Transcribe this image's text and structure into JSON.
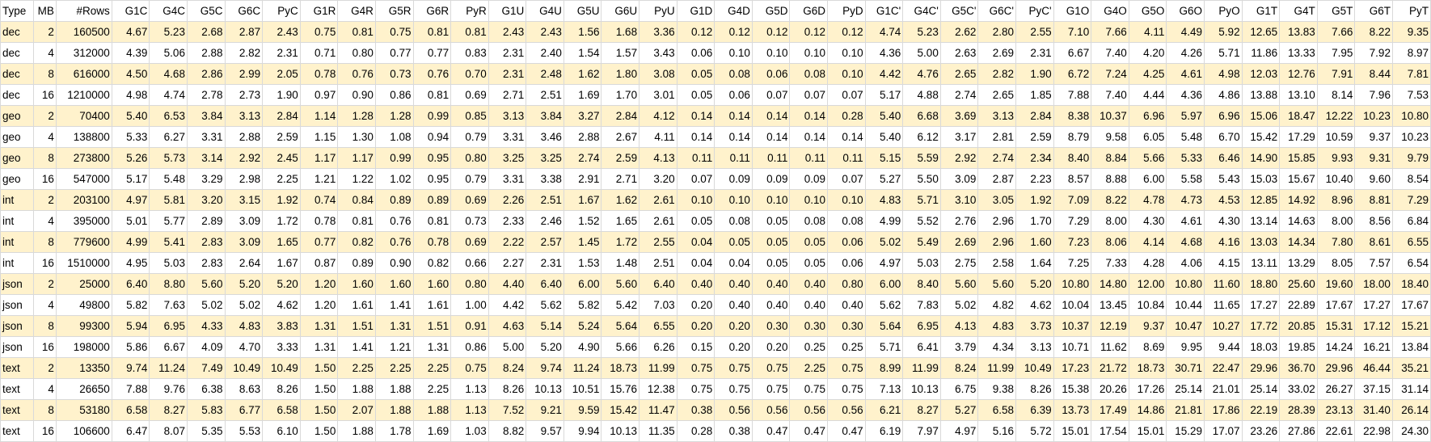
{
  "colors": {
    "band_fill": "#fff2cc",
    "plain_fill": "#ffffff",
    "gridline": "#d9d9d9"
  },
  "table": {
    "headers": [
      "Type",
      "MB",
      "#Rows",
      "G1C",
      "G4C",
      "G5C",
      "G6C",
      "PyC",
      "G1R",
      "G4R",
      "G5R",
      "G6R",
      "PyR",
      "G1U",
      "G4U",
      "G5U",
      "G6U",
      "PyU",
      "G1D",
      "G4D",
      "G5D",
      "G6D",
      "PyD",
      "G1C'",
      "G4C'",
      "G5C'",
      "G6C'",
      "PyC'",
      "G1O",
      "G4O",
      "G5O",
      "G6O",
      "PyO",
      "G1T",
      "G4T",
      "G5T",
      "G6T",
      "PyT"
    ],
    "rows": [
      [
        "dec",
        "2",
        "160500",
        "4.67",
        "5.23",
        "2.68",
        "2.87",
        "2.43",
        "0.75",
        "0.81",
        "0.75",
        "0.81",
        "0.81",
        "2.43",
        "2.43",
        "1.56",
        "1.68",
        "3.36",
        "0.12",
        "0.12",
        "0.12",
        "0.12",
        "0.12",
        "4.74",
        "5.23",
        "2.62",
        "2.80",
        "2.55",
        "7.10",
        "7.66",
        "4.11",
        "4.49",
        "5.92",
        "12.65",
        "13.83",
        "7.66",
        "8.22",
        "9.35"
      ],
      [
        "dec",
        "4",
        "312000",
        "4.39",
        "5.06",
        "2.88",
        "2.82",
        "2.31",
        "0.71",
        "0.80",
        "0.77",
        "0.77",
        "0.83",
        "2.31",
        "2.40",
        "1.54",
        "1.57",
        "3.43",
        "0.06",
        "0.10",
        "0.10",
        "0.10",
        "0.10",
        "4.36",
        "5.00",
        "2.63",
        "2.69",
        "2.31",
        "6.67",
        "7.40",
        "4.20",
        "4.26",
        "5.71",
        "11.86",
        "13.33",
        "7.95",
        "7.92",
        "8.97"
      ],
      [
        "dec",
        "8",
        "616000",
        "4.50",
        "4.68",
        "2.86",
        "2.99",
        "2.05",
        "0.78",
        "0.76",
        "0.73",
        "0.76",
        "0.70",
        "2.31",
        "2.48",
        "1.62",
        "1.80",
        "3.08",
        "0.05",
        "0.08",
        "0.06",
        "0.08",
        "0.10",
        "4.42",
        "4.76",
        "2.65",
        "2.82",
        "1.90",
        "6.72",
        "7.24",
        "4.25",
        "4.61",
        "4.98",
        "12.03",
        "12.76",
        "7.91",
        "8.44",
        "7.81"
      ],
      [
        "dec",
        "16",
        "1210000",
        "4.98",
        "4.74",
        "2.78",
        "2.73",
        "1.90",
        "0.97",
        "0.90",
        "0.86",
        "0.81",
        "0.69",
        "2.71",
        "2.51",
        "1.69",
        "1.70",
        "3.01",
        "0.05",
        "0.06",
        "0.07",
        "0.07",
        "0.07",
        "5.17",
        "4.88",
        "2.74",
        "2.65",
        "1.85",
        "7.88",
        "7.40",
        "4.44",
        "4.36",
        "4.86",
        "13.88",
        "13.10",
        "8.14",
        "7.96",
        "7.53"
      ],
      [
        "geo",
        "2",
        "70400",
        "5.40",
        "6.53",
        "3.84",
        "3.13",
        "2.84",
        "1.14",
        "1.28",
        "1.28",
        "0.99",
        "0.85",
        "3.13",
        "3.84",
        "3.27",
        "2.84",
        "4.12",
        "0.14",
        "0.14",
        "0.14",
        "0.14",
        "0.28",
        "5.40",
        "6.68",
        "3.69",
        "3.13",
        "2.84",
        "8.38",
        "10.37",
        "6.96",
        "5.97",
        "6.96",
        "15.06",
        "18.47",
        "12.22",
        "10.23",
        "10.80"
      ],
      [
        "geo",
        "4",
        "138800",
        "5.33",
        "6.27",
        "3.31",
        "2.88",
        "2.59",
        "1.15",
        "1.30",
        "1.08",
        "0.94",
        "0.79",
        "3.31",
        "3.46",
        "2.88",
        "2.67",
        "4.11",
        "0.14",
        "0.14",
        "0.14",
        "0.14",
        "0.14",
        "5.40",
        "6.12",
        "3.17",
        "2.81",
        "2.59",
        "8.79",
        "9.58",
        "6.05",
        "5.48",
        "6.70",
        "15.42",
        "17.29",
        "10.59",
        "9.37",
        "10.23"
      ],
      [
        "geo",
        "8",
        "273800",
        "5.26",
        "5.73",
        "3.14",
        "2.92",
        "2.45",
        "1.17",
        "1.17",
        "0.99",
        "0.95",
        "0.80",
        "3.25",
        "3.25",
        "2.74",
        "2.59",
        "4.13",
        "0.11",
        "0.11",
        "0.11",
        "0.11",
        "0.11",
        "5.15",
        "5.59",
        "2.92",
        "2.74",
        "2.34",
        "8.40",
        "8.84",
        "5.66",
        "5.33",
        "6.46",
        "14.90",
        "15.85",
        "9.93",
        "9.31",
        "9.79"
      ],
      [
        "geo",
        "16",
        "547000",
        "5.17",
        "5.48",
        "3.29",
        "2.98",
        "2.25",
        "1.21",
        "1.22",
        "1.02",
        "0.95",
        "0.79",
        "3.31",
        "3.38",
        "2.91",
        "2.71",
        "3.20",
        "0.07",
        "0.09",
        "0.09",
        "0.09",
        "0.07",
        "5.27",
        "5.50",
        "3.09",
        "2.87",
        "2.23",
        "8.57",
        "8.88",
        "6.00",
        "5.58",
        "5.43",
        "15.03",
        "15.67",
        "10.40",
        "9.60",
        "8.54"
      ],
      [
        "int",
        "2",
        "203100",
        "4.97",
        "5.81",
        "3.20",
        "3.15",
        "1.92",
        "0.74",
        "0.84",
        "0.89",
        "0.89",
        "0.69",
        "2.26",
        "2.51",
        "1.67",
        "1.62",
        "2.61",
        "0.10",
        "0.10",
        "0.10",
        "0.10",
        "0.10",
        "4.83",
        "5.71",
        "3.10",
        "3.05",
        "1.92",
        "7.09",
        "8.22",
        "4.78",
        "4.73",
        "4.53",
        "12.85",
        "14.92",
        "8.96",
        "8.81",
        "7.29"
      ],
      [
        "int",
        "4",
        "395000",
        "5.01",
        "5.77",
        "2.89",
        "3.09",
        "1.72",
        "0.78",
        "0.81",
        "0.76",
        "0.81",
        "0.73",
        "2.33",
        "2.46",
        "1.52",
        "1.65",
        "2.61",
        "0.05",
        "0.08",
        "0.05",
        "0.08",
        "0.08",
        "4.99",
        "5.52",
        "2.76",
        "2.96",
        "1.70",
        "7.29",
        "8.00",
        "4.30",
        "4.61",
        "4.30",
        "13.14",
        "14.63",
        "8.00",
        "8.56",
        "6.84"
      ],
      [
        "int",
        "8",
        "779600",
        "4.99",
        "5.41",
        "2.83",
        "3.09",
        "1.65",
        "0.77",
        "0.82",
        "0.76",
        "0.78",
        "0.69",
        "2.22",
        "2.57",
        "1.45",
        "1.72",
        "2.55",
        "0.04",
        "0.05",
        "0.05",
        "0.05",
        "0.06",
        "5.02",
        "5.49",
        "2.69",
        "2.96",
        "1.60",
        "7.23",
        "8.06",
        "4.14",
        "4.68",
        "4.16",
        "13.03",
        "14.34",
        "7.80",
        "8.61",
        "6.55"
      ],
      [
        "int",
        "16",
        "1510000",
        "4.95",
        "5.03",
        "2.83",
        "2.64",
        "1.67",
        "0.87",
        "0.89",
        "0.90",
        "0.82",
        "0.66",
        "2.27",
        "2.31",
        "1.53",
        "1.48",
        "2.51",
        "0.04",
        "0.04",
        "0.05",
        "0.05",
        "0.06",
        "4.97",
        "5.03",
        "2.75",
        "2.58",
        "1.64",
        "7.25",
        "7.33",
        "4.28",
        "4.06",
        "4.15",
        "13.11",
        "13.29",
        "8.05",
        "7.57",
        "6.54"
      ],
      [
        "json",
        "2",
        "25000",
        "6.40",
        "8.80",
        "5.60",
        "5.20",
        "5.20",
        "1.20",
        "1.60",
        "1.60",
        "1.60",
        "0.80",
        "4.40",
        "6.40",
        "6.00",
        "5.60",
        "6.40",
        "0.40",
        "0.40",
        "0.40",
        "0.40",
        "0.80",
        "6.00",
        "8.40",
        "5.60",
        "5.60",
        "5.20",
        "10.80",
        "14.80",
        "12.00",
        "10.80",
        "11.60",
        "18.80",
        "25.60",
        "19.60",
        "18.00",
        "18.40"
      ],
      [
        "json",
        "4",
        "49800",
        "5.82",
        "7.63",
        "5.02",
        "5.02",
        "4.62",
        "1.20",
        "1.61",
        "1.41",
        "1.61",
        "1.00",
        "4.42",
        "5.62",
        "5.82",
        "5.42",
        "7.03",
        "0.20",
        "0.40",
        "0.40",
        "0.40",
        "0.40",
        "5.62",
        "7.83",
        "5.02",
        "4.82",
        "4.62",
        "10.04",
        "13.45",
        "10.84",
        "10.44",
        "11.65",
        "17.27",
        "22.89",
        "17.67",
        "17.27",
        "17.67"
      ],
      [
        "json",
        "8",
        "99300",
        "5.94",
        "6.95",
        "4.33",
        "4.83",
        "3.83",
        "1.31",
        "1.51",
        "1.31",
        "1.51",
        "0.91",
        "4.63",
        "5.14",
        "5.24",
        "5.64",
        "6.55",
        "0.20",
        "0.20",
        "0.30",
        "0.30",
        "0.30",
        "5.64",
        "6.95",
        "4.13",
        "4.83",
        "3.73",
        "10.37",
        "12.19",
        "9.37",
        "10.47",
        "10.27",
        "17.72",
        "20.85",
        "15.31",
        "17.12",
        "15.21"
      ],
      [
        "json",
        "16",
        "198000",
        "5.86",
        "6.67",
        "4.09",
        "4.70",
        "3.33",
        "1.31",
        "1.41",
        "1.21",
        "1.31",
        "0.86",
        "5.00",
        "5.20",
        "4.90",
        "5.66",
        "6.26",
        "0.15",
        "0.20",
        "0.20",
        "0.25",
        "0.25",
        "5.71",
        "6.41",
        "3.79",
        "4.34",
        "3.13",
        "10.71",
        "11.62",
        "8.69",
        "9.95",
        "9.44",
        "18.03",
        "19.85",
        "14.24",
        "16.21",
        "13.84"
      ],
      [
        "text",
        "2",
        "13350",
        "9.74",
        "11.24",
        "7.49",
        "10.49",
        "10.49",
        "1.50",
        "2.25",
        "2.25",
        "2.25",
        "0.75",
        "8.24",
        "9.74",
        "11.24",
        "18.73",
        "11.99",
        "0.75",
        "0.75",
        "0.75",
        "2.25",
        "0.75",
        "8.99",
        "11.99",
        "8.24",
        "11.99",
        "10.49",
        "17.23",
        "21.72",
        "18.73",
        "30.71",
        "22.47",
        "29.96",
        "36.70",
        "29.96",
        "46.44",
        "35.21"
      ],
      [
        "text",
        "4",
        "26650",
        "7.88",
        "9.76",
        "6.38",
        "8.63",
        "8.26",
        "1.50",
        "1.88",
        "1.88",
        "2.25",
        "1.13",
        "8.26",
        "10.13",
        "10.51",
        "15.76",
        "12.38",
        "0.75",
        "0.75",
        "0.75",
        "0.75",
        "0.75",
        "7.13",
        "10.13",
        "6.75",
        "9.38",
        "8.26",
        "15.38",
        "20.26",
        "17.26",
        "25.14",
        "21.01",
        "25.14",
        "33.02",
        "26.27",
        "37.15",
        "31.14"
      ],
      [
        "text",
        "8",
        "53180",
        "6.58",
        "8.27",
        "5.83",
        "6.77",
        "6.58",
        "1.50",
        "2.07",
        "1.88",
        "1.88",
        "1.13",
        "7.52",
        "9.21",
        "9.59",
        "15.42",
        "11.47",
        "0.38",
        "0.56",
        "0.56",
        "0.56",
        "0.56",
        "6.21",
        "8.27",
        "5.27",
        "6.58",
        "6.39",
        "13.73",
        "17.49",
        "14.86",
        "21.81",
        "17.86",
        "22.19",
        "28.39",
        "23.13",
        "31.40",
        "26.14"
      ],
      [
        "text",
        "16",
        "106600",
        "6.47",
        "8.07",
        "5.35",
        "5.53",
        "6.10",
        "1.50",
        "1.88",
        "1.78",
        "1.69",
        "1.03",
        "8.82",
        "9.57",
        "9.94",
        "10.13",
        "11.35",
        "0.28",
        "0.38",
        "0.47",
        "0.47",
        "0.47",
        "6.19",
        "7.97",
        "4.97",
        "5.16",
        "5.72",
        "15.01",
        "17.54",
        "15.01",
        "15.29",
        "17.07",
        "23.26",
        "27.86",
        "22.61",
        "22.98",
        "24.30"
      ]
    ]
  }
}
